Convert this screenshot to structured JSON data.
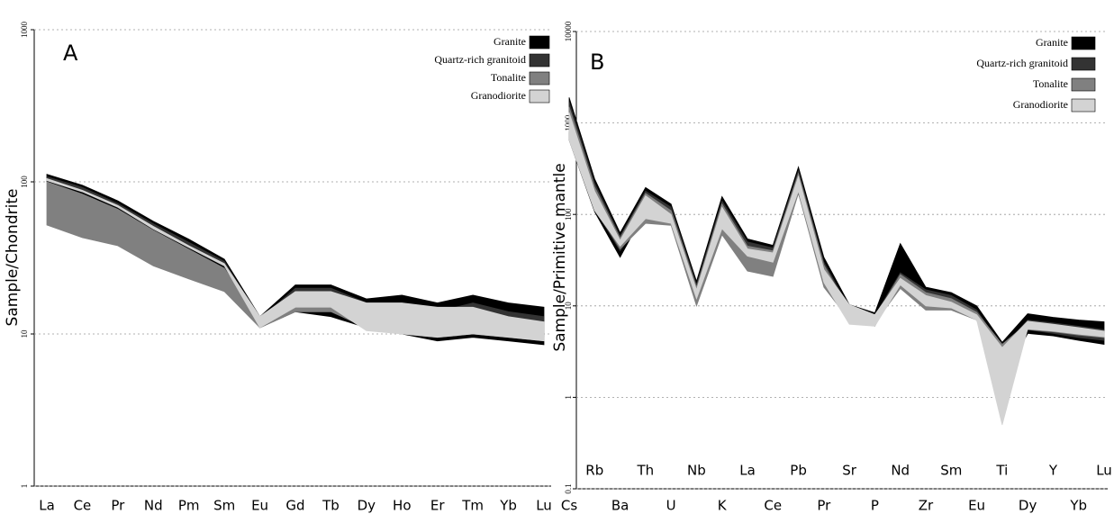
{
  "chart_data": [
    {
      "type": "band",
      "label": "A",
      "y_label": "Sample/Chondrite",
      "log_scale": true,
      "grid": true,
      "legend_corner": "upper right",
      "categories": [
        "La",
        "Ce",
        "Pr",
        "Nd",
        "Pm",
        "Sm",
        "Eu",
        "Gd",
        "Tb",
        "Dy",
        "Ho",
        "Er",
        "Tm",
        "Yb",
        "Lu"
      ],
      "ylim": [
        1,
        1000
      ],
      "yticks": [
        1,
        10,
        100,
        1000
      ],
      "series": [
        {
          "name": "Granite",
          "color": "#000000",
          "high": [
            112,
            95,
            75,
            55,
            42,
            31,
            13,
            21,
            21,
            17,
            18,
            16,
            18,
            16,
            15
          ],
          "low": [
            100,
            82,
            65,
            48,
            36,
            27,
            11,
            14,
            13,
            11,
            10,
            9,
            9.5,
            9,
            8.5
          ]
        },
        {
          "name": "Quartz-rich granitoid",
          "color": "#333333",
          "high": [
            108,
            92,
            72,
            53,
            40,
            30,
            12.5,
            20,
            20,
            16,
            16,
            14,
            16,
            14,
            13
          ],
          "low": [
            102,
            86,
            68,
            50,
            38,
            28,
            11.5,
            18,
            17,
            11.5,
            11,
            10,
            10.5,
            10,
            9.5
          ]
        },
        {
          "name": "Tonalite",
          "color": "#808080",
          "high": [
            100,
            83,
            66,
            48,
            36,
            27,
            12,
            18,
            18,
            12,
            11,
            10.5,
            11,
            10,
            9.5
          ],
          "low": [
            52,
            43,
            38,
            28,
            23,
            19,
            11,
            14,
            14,
            11,
            10,
            9.5,
            10,
            9.5,
            9
          ]
        },
        {
          "name": "Granodiorite",
          "color": "#d3d3d3",
          "high": [
            105,
            88,
            70,
            51,
            38,
            29,
            13,
            19,
            19,
            16,
            16,
            15,
            15,
            13,
            12
          ],
          "low": [
            102,
            86,
            68,
            49,
            37,
            28,
            11,
            15,
            15,
            10.5,
            10,
            9.5,
            10,
            9.5,
            9
          ]
        }
      ]
    },
    {
      "type": "band",
      "label": "B",
      "y_label": "Sample/Primitive mantle",
      "log_scale": true,
      "grid": true,
      "legend_corner": "upper right",
      "categories": [
        "Cs",
        "Rb",
        "Ba",
        "Th",
        "U",
        "Nb",
        "K",
        "La",
        "Ce",
        "Pb",
        "Pr",
        "Sr",
        "P",
        "Nd",
        "Zr",
        "Sm",
        "Eu",
        "Ti",
        "Dy",
        "Y",
        "Yb",
        "Lu"
      ],
      "ylim": [
        0.1,
        10000
      ],
      "yticks": [
        0.1,
        1,
        10,
        100,
        1000,
        10000
      ],
      "series": [
        {
          "name": "Granite",
          "color": "#000000",
          "high": [
            1900,
            245,
            63,
            197,
            130,
            18.6,
            157,
            54,
            46,
            330,
            34,
            10.3,
            8.4,
            48,
            16,
            14,
            10,
            4,
            8.2,
            7.5,
            7,
            6.7
          ],
          "low": [
            650,
            107,
            34,
            110,
            90,
            14,
            60,
            35,
            30,
            170,
            20,
            7,
            6,
            20,
            11,
            10,
            7,
            1.5,
            5,
            4.7,
            4.2,
            3.8
          ]
        },
        {
          "name": "Quartz-rich granitoid",
          "color": "#333333",
          "high": [
            1700,
            220,
            58,
            180,
            120,
            17,
            140,
            50,
            43,
            300,
            30,
            9.5,
            7.8,
            23,
            15,
            13,
            9,
            3.5,
            7,
            6.5,
            6,
            5.5
          ],
          "low": [
            700,
            115,
            40,
            100,
            85,
            13,
            70,
            40,
            32,
            180,
            20,
            7.5,
            6.5,
            18,
            12,
            11,
            7.5,
            2,
            5.5,
            5,
            4.5,
            4.2
          ]
        },
        {
          "name": "Tonalite",
          "color": "#808080",
          "high": [
            1500,
            200,
            55,
            170,
            110,
            16,
            130,
            45,
            40,
            280,
            28,
            9,
            7.5,
            22,
            14,
            12,
            8.5,
            3.8,
            6.5,
            6,
            5.5,
            5
          ],
          "low": [
            800,
            120,
            42,
            80,
            76,
            10,
            60,
            24,
            21,
            170,
            16,
            7,
            6.5,
            15.5,
            9,
            9,
            7,
            2.5,
            5.5,
            5.2,
            4.8,
            4.5
          ]
        },
        {
          "name": "Granodiorite",
          "color": "#d3d3d3",
          "high": [
            1300,
            180,
            52,
            160,
            100,
            15,
            120,
            42,
            38,
            260,
            25,
            10.3,
            8,
            20,
            13,
            11,
            8,
            3.5,
            6.8,
            6.3,
            5.8,
            5.3
          ],
          "low": [
            650,
            110,
            45,
            90,
            80,
            12,
            70,
            35,
            30,
            180,
            18,
            6.3,
            6,
            17,
            10,
            9.5,
            7,
            0.5,
            5.6,
            5.3,
            4.9,
            4.6
          ]
        }
      ]
    }
  ]
}
